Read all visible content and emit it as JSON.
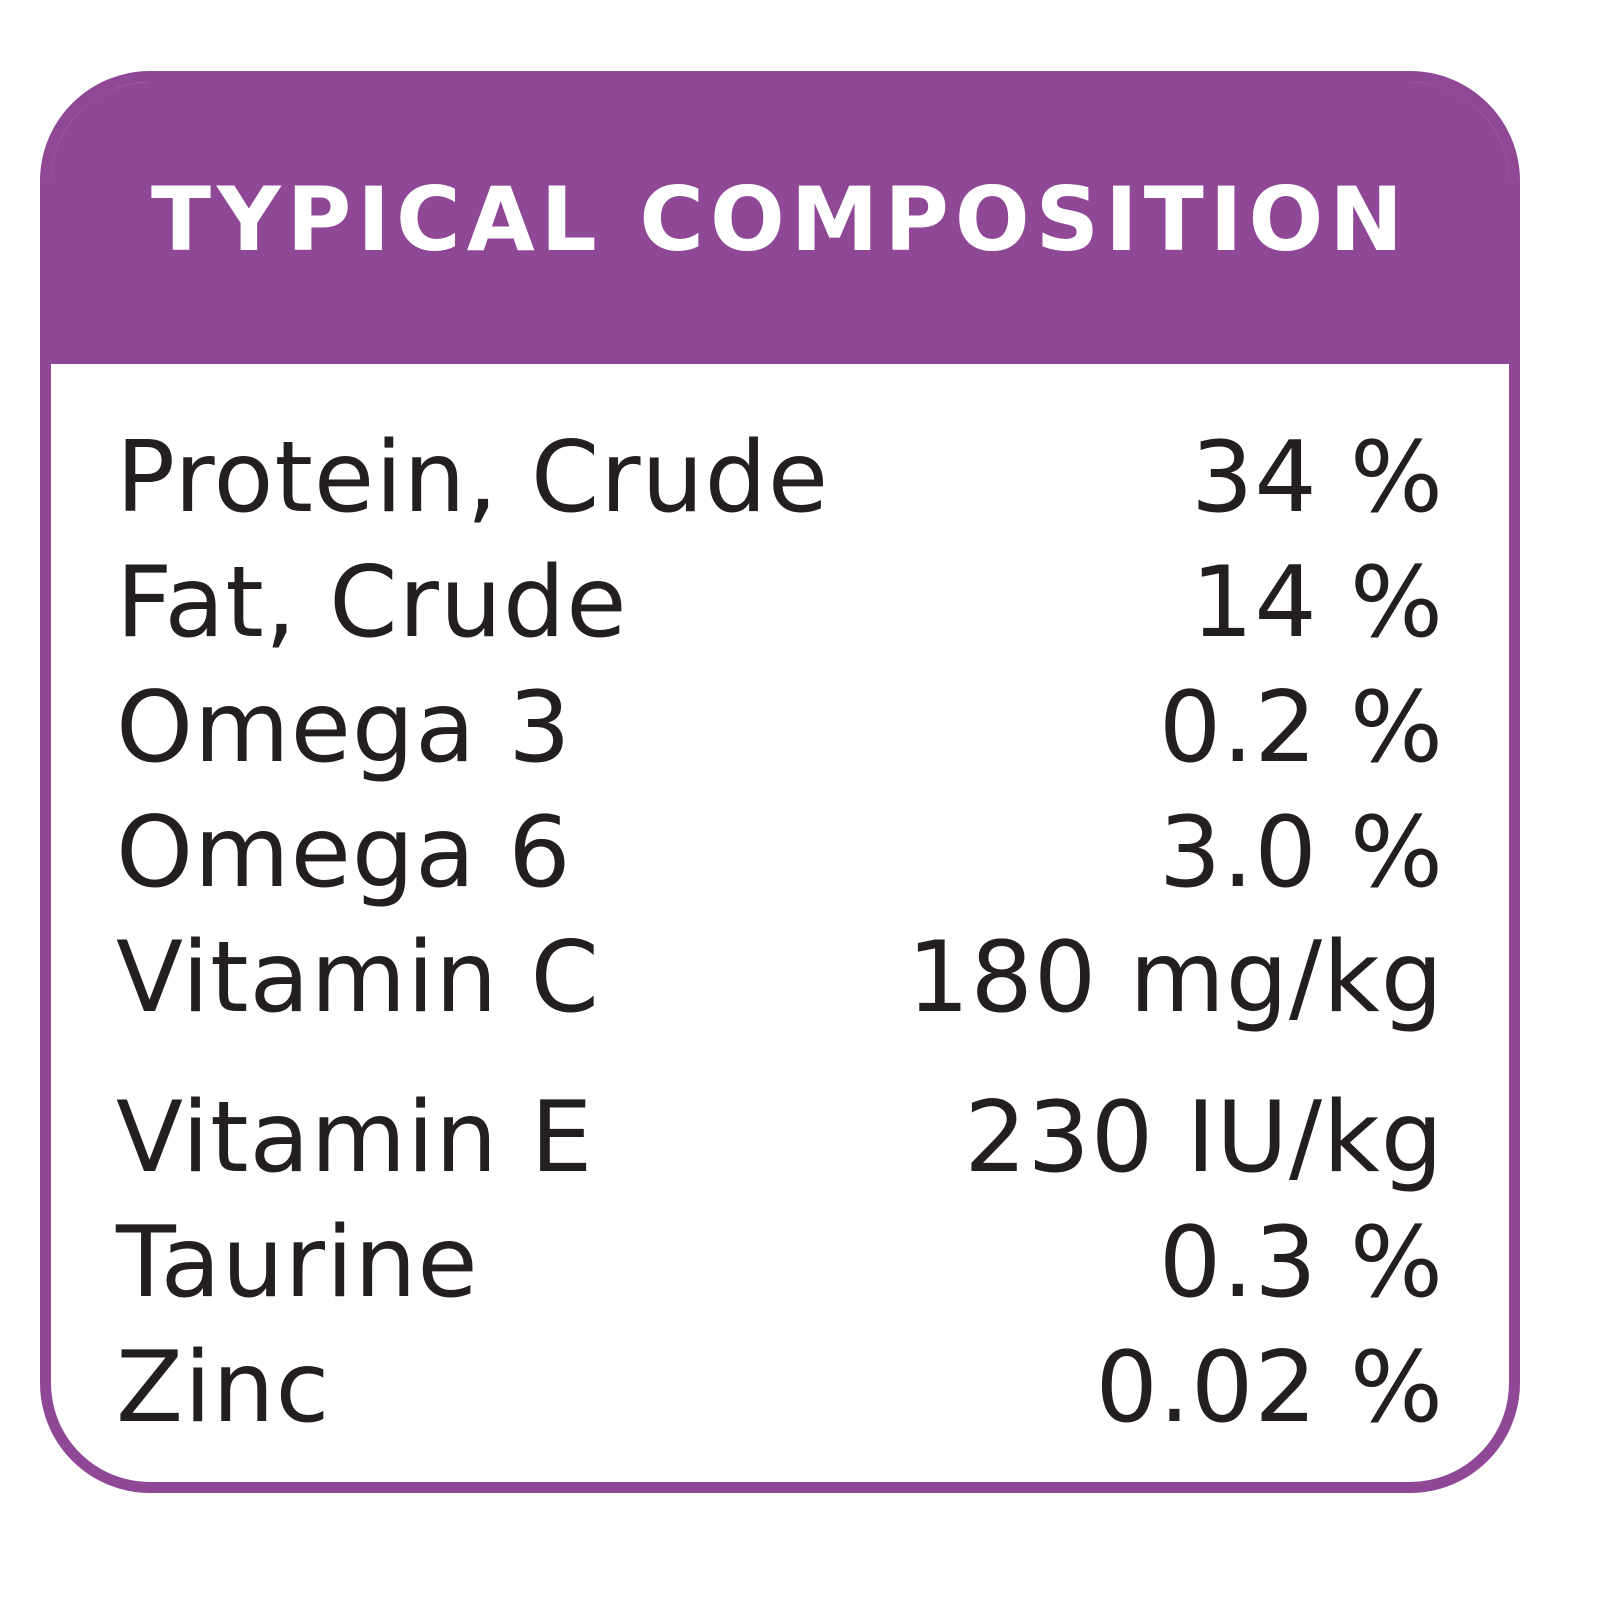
{
  "title": "TYPICAL COMPOSITION",
  "colors": {
    "accent": "#8e4895",
    "text": "#231f20",
    "background": "#ffffff"
  },
  "rows": [
    {
      "name": "Protein, Crude",
      "value": "34 %"
    },
    {
      "name": "Fat, Crude",
      "value": "14 %"
    },
    {
      "name": "Omega 3",
      "value": "0.2 %"
    },
    {
      "name": "Omega 6",
      "value": "3.0 %"
    },
    {
      "name": "Vitamin C",
      "value": "180 mg/kg"
    },
    {
      "name": "Vitamin E",
      "value": "230 IU/kg"
    },
    {
      "name": "Taurine",
      "value": "0.3 %"
    },
    {
      "name": "Zinc",
      "value": "0.02 %"
    }
  ]
}
